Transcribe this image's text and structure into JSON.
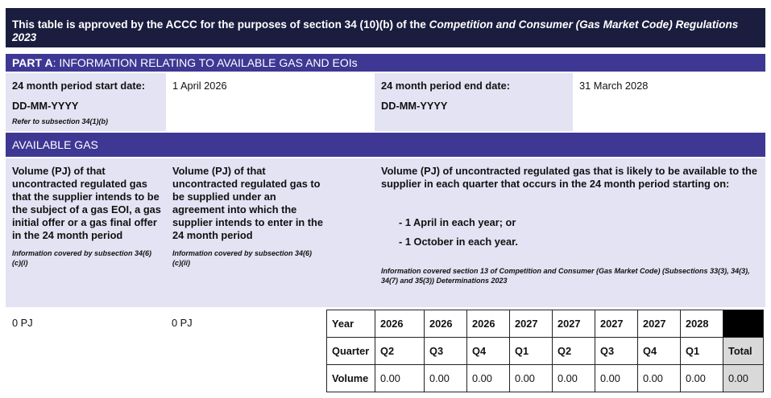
{
  "header": {
    "text_prefix": "This table is approved by the ACCC for the purposes of section 34 (10)(b) of the ",
    "text_italic": "Competition and Consumer (Gas Market Code) Regulations 2023"
  },
  "part_a": {
    "label": "PART A",
    "title": ": INFORMATION RELATING TO AVAILABLE GAS AND EOIs"
  },
  "period": {
    "start_label": "24 month period start date:",
    "start_format": "DD-MM-YYYY",
    "start_note": "Refer to subsection 34(1)(b)",
    "start_value": "1 April 2026",
    "end_label": "24 month period end date:",
    "end_format": "DD-MM-YYYY",
    "end_value": "31 March 2028"
  },
  "available_gas": {
    "title": "AVAILABLE GAS",
    "col1": {
      "text": "Volume (PJ) of that uncontracted regulated gas that the supplier intends to be the subject of a gas EOI, a gas initial offer or a gas final offer in the 24 month period",
      "note": "Information covered by subsection 34(6)(c)(i)",
      "value": "0 PJ"
    },
    "col2": {
      "text": "Volume (PJ) of that uncontracted regulated gas to be supplied under an agreement into which the supplier intends to enter in the 24 month period",
      "note": "Information covered by subsection 34(6)(c)(ii)",
      "value": "0 PJ"
    },
    "col3": {
      "text": "Volume (PJ) of uncontracted regulated gas that is likely to be available to the supplier in each quarter that occurs in the 24 month period starting on:",
      "bullet1": "- 1 April in each year; or",
      "bullet2": "- 1 October in each year.",
      "note": "Information covered section 13 of Competition and Consumer (Gas Market Code) (Subsections 33(3), 34(3), 34(7) and 35(3)) Determinations 2023"
    }
  },
  "table": {
    "year_label": "Year",
    "quarter_label": "Quarter",
    "volume_label": "Volume",
    "total_label": "Total",
    "total_value": "0.00",
    "years": [
      "2026",
      "2026",
      "2026",
      "2027",
      "2027",
      "2027",
      "2027",
      "2028"
    ],
    "quarters": [
      "Q2",
      "Q3",
      "Q4",
      "Q1",
      "Q2",
      "Q3",
      "Q4",
      "Q1"
    ],
    "volumes": [
      "0.00",
      "0.00",
      "0.00",
      "0.00",
      "0.00",
      "0.00",
      "0.00",
      "0.00"
    ]
  },
  "colors": {
    "header_bg": "#1b1d3f",
    "section_bar": "#3e3894",
    "panel_bg": "#e3e3f4",
    "total_bg": "#d9d9d9"
  }
}
